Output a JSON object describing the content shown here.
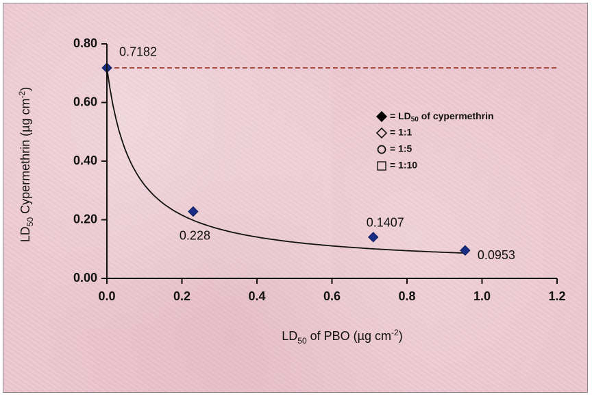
{
  "chart_data": {
    "type": "scatter",
    "xlabel": "LD50 of PBO (µg cm-2)",
    "ylabel": "LD50 Cypermethrin (µg cm-2)",
    "xlim": [
      0,
      1.2
    ],
    "ylim": [
      0,
      0.8
    ],
    "x_ticks": [
      "0.0",
      "0.2",
      "0.4",
      "0.6",
      "0.8",
      "1.0",
      "1.2"
    ],
    "y_ticks": [
      "0.00",
      "0.20",
      "0.40",
      "0.60",
      "0.80"
    ],
    "x_tick_values": [
      0,
      0.2,
      0.4,
      0.6,
      0.8,
      1.0,
      1.2
    ],
    "y_tick_values": [
      0,
      0.2,
      0.4,
      0.6,
      0.8
    ],
    "grid": false,
    "legend_position": "top-right",
    "points": [
      {
        "x": 0.0,
        "y": 0.7182,
        "label": "0.7182"
      },
      {
        "x": 0.23,
        "y": 0.228,
        "label": "0.228"
      },
      {
        "x": 0.71,
        "y": 0.1407,
        "label": "0.1407"
      },
      {
        "x": 0.955,
        "y": 0.0953,
        "label": "0.0953"
      }
    ],
    "reference_line": {
      "y": 0.7182,
      "style": "dashed",
      "color": "#a33a2a"
    },
    "trend_curve": "fitted curve through the points",
    "marker_color": "#1a2e86",
    "legend": [
      {
        "symbol": "filled-diamond",
        "text": "= LD50 of cypermethrin"
      },
      {
        "symbol": "open-diamond",
        "text": "= 1:1"
      },
      {
        "symbol": "open-circle",
        "text": "= 1:5"
      },
      {
        "symbol": "open-square",
        "text": "= 1:10"
      }
    ]
  }
}
